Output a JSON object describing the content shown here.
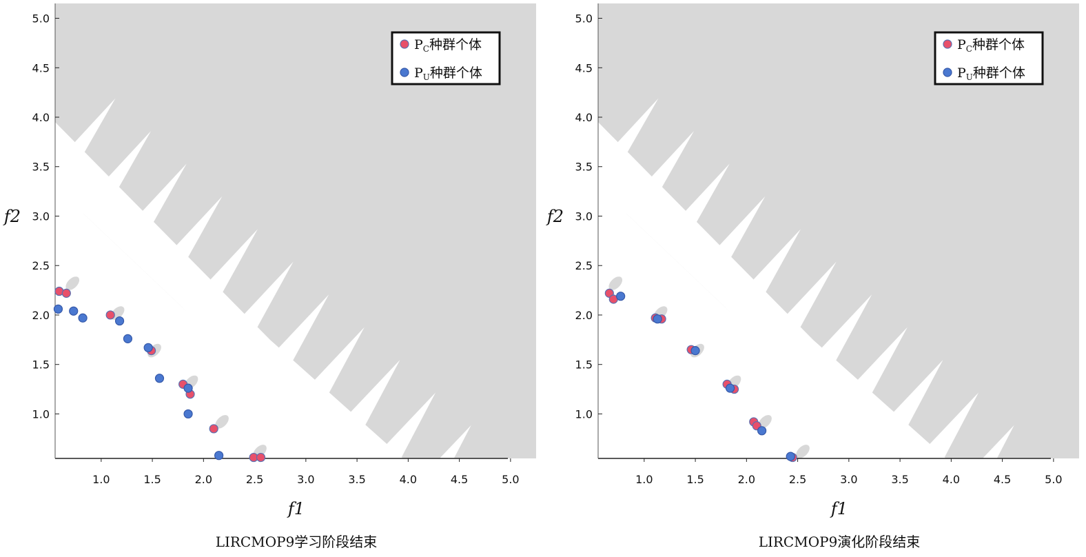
{
  "colors": {
    "infeasible": "#d8d8d8",
    "feasible": "#ffffff",
    "pc": "#e8506a",
    "pc_edge": "#5a6fb0",
    "pu": "#4a78d0",
    "pu_edge": "#3558a8"
  },
  "legend": {
    "pc_prefix": "P",
    "pc_sub": "C",
    "pc_suffix": "种群个体",
    "pu_prefix": "P",
    "pu_sub": "U",
    "pu_suffix": "种群个体"
  },
  "chart_data": [
    {
      "type": "scatter",
      "title": "LIRCMOP9学习阶段结束",
      "xlabel": "f1",
      "ylabel": "f2",
      "xlim": [
        0.55,
        5.25
      ],
      "ylim": [
        0.55,
        5.15
      ],
      "xticks": [
        "1.0",
        "1.5",
        "2.0",
        "2.5",
        "3.0",
        "3.5",
        "4.0",
        "4.5",
        "5.0"
      ],
      "yticks": [
        "1.0",
        "1.5",
        "2.0",
        "2.5",
        "3.0",
        "3.5",
        "4.0",
        "4.5",
        "5.0"
      ],
      "legend_position": "top-right",
      "series": [
        {
          "name": "PC种群个体",
          "role": "pc",
          "points": [
            [
              0.59,
              2.24
            ],
            [
              0.66,
              2.22
            ],
            [
              1.09,
              2.0
            ],
            [
              1.49,
              1.64
            ],
            [
              1.8,
              1.3
            ],
            [
              1.87,
              1.2
            ],
            [
              2.1,
              0.85
            ],
            [
              2.49,
              0.56
            ],
            [
              2.56,
              0.56
            ]
          ]
        },
        {
          "name": "PU种群个体",
          "role": "pu",
          "points": [
            [
              0.58,
              2.06
            ],
            [
              0.73,
              2.04
            ],
            [
              0.82,
              1.97
            ],
            [
              1.18,
              1.94
            ],
            [
              1.26,
              1.76
            ],
            [
              1.46,
              1.67
            ],
            [
              1.57,
              1.36
            ],
            [
              1.85,
              1.26
            ],
            [
              1.85,
              1.0
            ],
            [
              2.15,
              0.58
            ]
          ]
        }
      ]
    },
    {
      "type": "scatter",
      "title": "LIRCMOP9演化阶段结束",
      "xlabel": "f1",
      "ylabel": "f2",
      "xlim": [
        0.55,
        5.25
      ],
      "ylim": [
        0.55,
        5.15
      ],
      "xticks": [
        "1.0",
        "1.5",
        "2.0",
        "2.5",
        "3.0",
        "3.5",
        "4.0",
        "4.5",
        "5.0"
      ],
      "yticks": [
        "1.0",
        "1.5",
        "2.0",
        "2.5",
        "3.0",
        "3.5",
        "4.0",
        "4.5",
        "5.0"
      ],
      "legend_position": "top-right",
      "series": [
        {
          "name": "PC种群个体",
          "role": "pc",
          "points": [
            [
              0.66,
              2.22
            ],
            [
              0.7,
              2.16
            ],
            [
              1.11,
              1.97
            ],
            [
              1.17,
              1.96
            ],
            [
              1.46,
              1.65
            ],
            [
              1.81,
              1.3
            ],
            [
              1.88,
              1.25
            ],
            [
              2.07,
              0.92
            ],
            [
              2.1,
              0.88
            ],
            [
              2.45,
              0.56
            ]
          ]
        },
        {
          "name": "PU种群个体",
          "role": "pu",
          "points": [
            [
              0.77,
              2.19
            ],
            [
              1.13,
              1.96
            ],
            [
              1.5,
              1.64
            ],
            [
              1.84,
              1.26
            ],
            [
              2.15,
              0.83
            ],
            [
              2.43,
              0.57
            ]
          ]
        }
      ]
    }
  ]
}
